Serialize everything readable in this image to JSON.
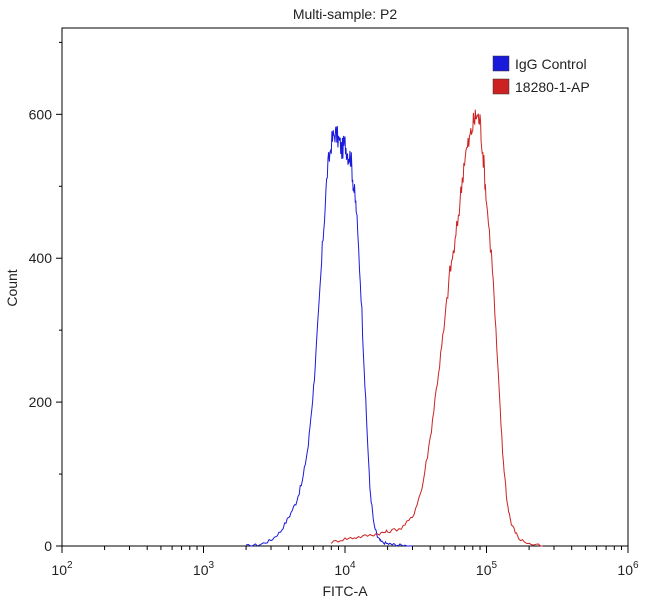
{
  "chart_data": {
    "type": "line",
    "title": "Multi-sample: P2",
    "xlabel": "FITC-A",
    "ylabel": "Count",
    "x_scale": "log",
    "xlim": [
      100,
      1000000
    ],
    "ylim": [
      0,
      720
    ],
    "x_ticks": [
      {
        "value": 100,
        "base": "10",
        "exp": "2"
      },
      {
        "value": 1000,
        "base": "10",
        "exp": "3"
      },
      {
        "value": 10000,
        "base": "10",
        "exp": "4"
      },
      {
        "value": 100000,
        "base": "10",
        "exp": "5"
      },
      {
        "value": 1000000,
        "base": "10",
        "exp": "6"
      }
    ],
    "y_ticks": [
      0,
      200,
      400,
      600
    ],
    "grid": false,
    "legend_position": "top-right",
    "series": [
      {
        "name": "IgG Control",
        "color": "#1a1adb",
        "x": [
          2000,
          2500,
          3000,
          3500,
          4000,
          4500,
          5000,
          5500,
          6000,
          6500,
          7000,
          7500,
          8000,
          8500,
          9000,
          9500,
          10000,
          10500,
          11000,
          11500,
          12000,
          13000,
          14000,
          15000,
          16000,
          17000,
          18000,
          20000,
          22000,
          25000,
          30000
        ],
        "values": [
          0,
          2,
          8,
          20,
          40,
          60,
          90,
          140,
          220,
          320,
          430,
          520,
          560,
          575,
          565,
          550,
          560,
          545,
          540,
          500,
          470,
          350,
          200,
          80,
          30,
          12,
          6,
          3,
          2,
          1,
          0
        ]
      },
      {
        "name": "18280-1-AP",
        "color": "#cc2222",
        "x": [
          8000,
          10000,
          12000,
          15000,
          18000,
          20000,
          25000,
          30000,
          35000,
          40000,
          45000,
          50000,
          55000,
          60000,
          65000,
          70000,
          75000,
          80000,
          85000,
          90000,
          95000,
          100000,
          110000,
          120000,
          130000,
          140000,
          150000,
          170000,
          200000,
          250000
        ],
        "values": [
          5,
          10,
          12,
          15,
          18,
          20,
          25,
          40,
          80,
          150,
          230,
          300,
          380,
          420,
          480,
          540,
          560,
          585,
          600,
          590,
          540,
          480,
          390,
          250,
          130,
          60,
          30,
          10,
          3,
          0
        ]
      }
    ]
  }
}
